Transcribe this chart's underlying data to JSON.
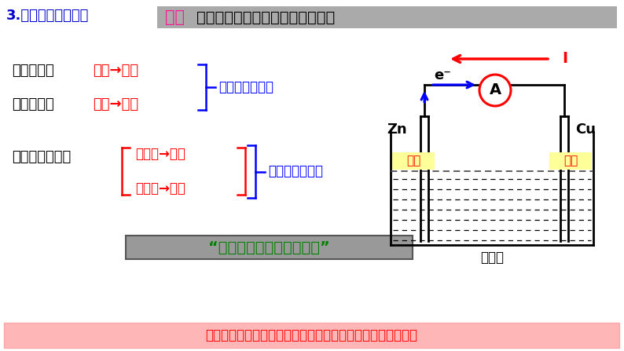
{
  "bg_color": "#ffffff",
  "title_text": "3.原电池的工作原理",
  "title_color": "#0000cc",
  "header_box_color": "#aaaaaa",
  "header_si_kao": "思考",
  "header_si_kao_color": "#ff1493",
  "header_rest": "：电子流向、电流方向、离子流向",
  "header_rest_color": "#000000",
  "header_rest_bold": true,
  "line1_label": "电子流向：",
  "line1_value": "负极→正极",
  "line1_label_color": "#000000",
  "line1_value_color": "#ff0000",
  "line2_label": "电流方向：",
  "line2_value": "正极→负极",
  "line2_label_color": "#000000",
  "line2_value_color": "#ff0000",
  "outer_circuit_label": "外电路（导线）",
  "outer_circuit_color": "#0000ff",
  "ion_label": "离子移动方向：",
  "ion_label_color": "#000000",
  "ion_line1": "阳离子→正极",
  "ion_line2": "阴离子→负极",
  "ion_color": "#ff0000",
  "inner_circuit_label": "内电路（溶液）",
  "inner_circuit_color": "#0000ff",
  "quote_text": "“电子不下水，离子不上岸”",
  "quote_color": "#008000",
  "quote_bg": "#999999",
  "bottom_text": "这样整个电路构成了闭合回路，带电粒子的定向移动产生电流",
  "bottom_color": "#ff0000",
  "bottom_bg": "#ffb6b6",
  "sulfate_label": "硫酸铜",
  "zn_label": "Zn",
  "cu_label": "Cu",
  "neg_label": "负极",
  "pos_label": "正极",
  "neg_bg": "#ffff99",
  "pos_bg": "#ffff99",
  "I_label": "I",
  "I_color": "#ff0000",
  "e_label": "e⁻",
  "arrow_e_color": "#0000ff",
  "arrow_I_color": "#ff0000",
  "ammeter_color": "#ff0000",
  "circuit_color": "#000000"
}
